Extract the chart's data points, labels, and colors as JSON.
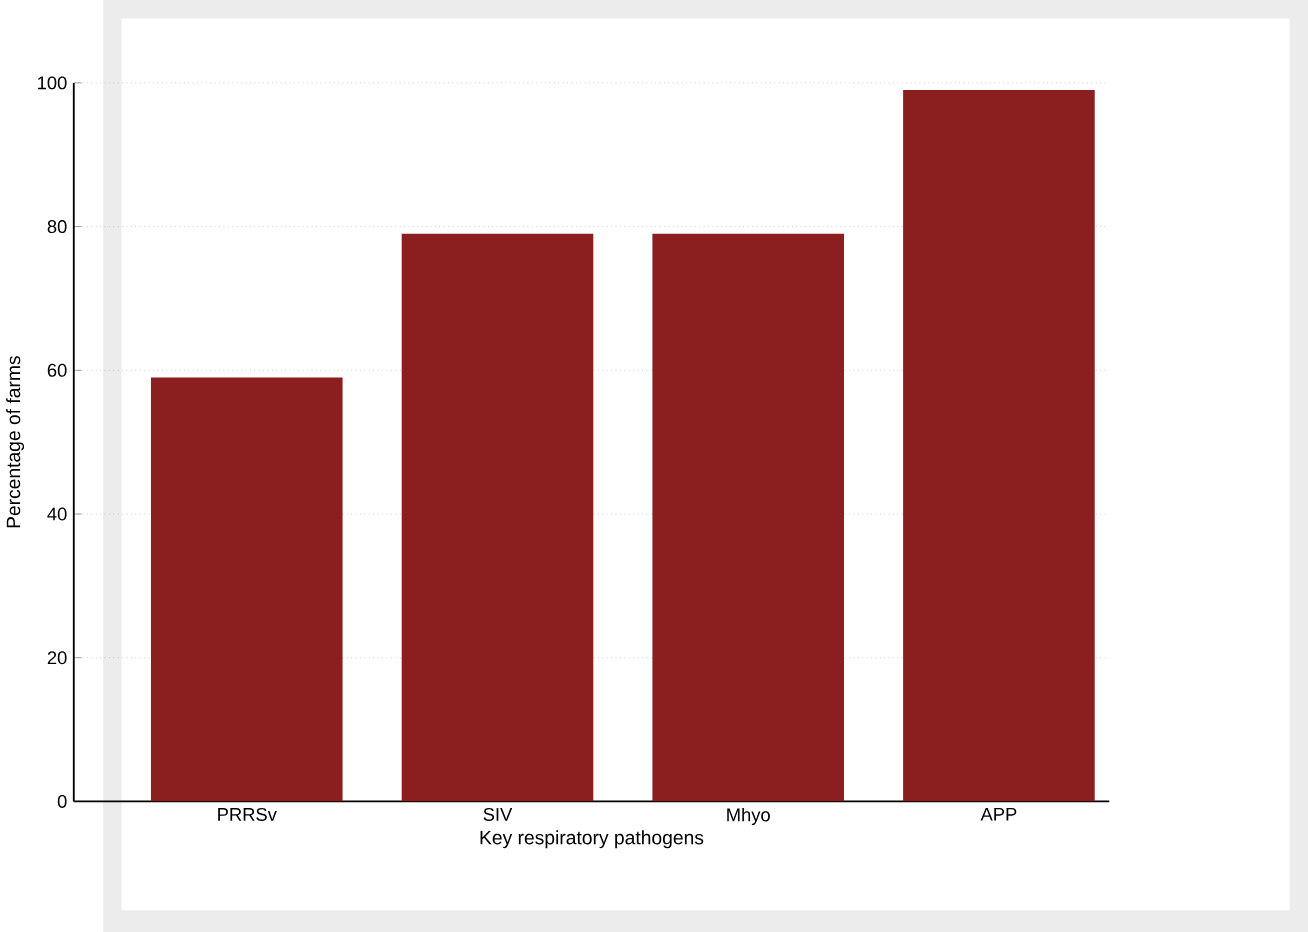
{
  "chart_data": {
    "type": "bar",
    "xlabel": "Key respiratory pathogens",
    "ylabel": "Percentage of farms",
    "categories": [
      "PRRSv",
      "SIV",
      "Mhyo",
      "APP"
    ],
    "values": [
      59,
      79,
      79,
      99
    ],
    "color": "#8b1f1f",
    "ylim": [
      0,
      100
    ],
    "yticks": [
      0,
      20,
      40,
      60,
      80,
      100
    ],
    "grid": "y"
  }
}
